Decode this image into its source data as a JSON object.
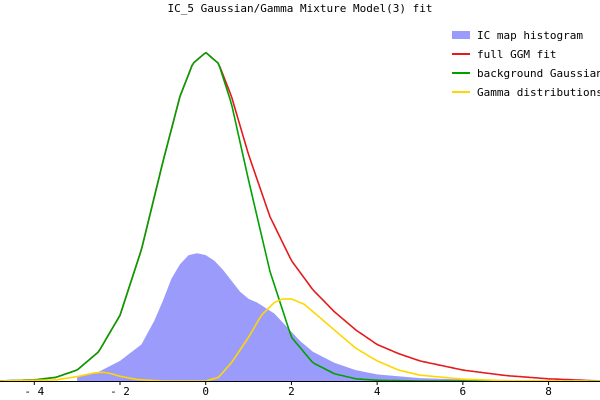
{
  "chart_data": {
    "type": "area",
    "title": "IC_5 Gaussian/Gamma Mixture Model(3) fit",
    "xlabel": "",
    "ylabel": "",
    "xlim": [
      -4.8,
      9.2
    ],
    "ylim": [
      0,
      1.0
    ],
    "grid": false,
    "legend_position": "top-right",
    "x_ticks": [
      {
        "value": -4,
        "label": "- 4"
      },
      {
        "value": -2,
        "label": "- 2"
      },
      {
        "value": 0,
        "label": "0"
      },
      {
        "value": 2,
        "label": "2"
      },
      {
        "value": 4,
        "label": "4"
      },
      {
        "value": 6,
        "label": "6"
      },
      {
        "value": 8,
        "label": "8"
      }
    ],
    "legend": [
      {
        "label": "IC map histogram",
        "color": "#9b9bfb",
        "kind": "histogram"
      },
      {
        "label": "full GGM fit",
        "color": "#e41a1c",
        "kind": "line"
      },
      {
        "label": "background Gaussian",
        "color": "#00a000",
        "kind": "line"
      },
      {
        "label": "Gamma distributions",
        "color": "#ffd700",
        "kind": "line"
      }
    ],
    "series": [
      {
        "name": "IC map histogram",
        "color": "#9b9bfb",
        "x": [
          -3.0,
          -2.5,
          -2.0,
          -1.5,
          -1.2,
          -1.0,
          -0.8,
          -0.6,
          -0.4,
          -0.2,
          0.0,
          0.2,
          0.4,
          0.6,
          0.8,
          1.0,
          1.2,
          1.4,
          1.6,
          1.8,
          2.0,
          2.2,
          2.5,
          3.0,
          3.5,
          4.0,
          5.0,
          6.0,
          7.0,
          8.0,
          9.0
        ],
        "y": [
          0.01,
          0.025,
          0.055,
          0.1,
          0.165,
          0.22,
          0.28,
          0.32,
          0.345,
          0.35,
          0.345,
          0.33,
          0.305,
          0.275,
          0.245,
          0.225,
          0.215,
          0.2,
          0.185,
          0.16,
          0.135,
          0.11,
          0.08,
          0.05,
          0.03,
          0.018,
          0.008,
          0.004,
          0.002,
          0.001,
          0.0
        ]
      },
      {
        "name": "full GGM fit",
        "color": "#e41a1c",
        "x": [
          -4.8,
          -4.0,
          -3.5,
          -3.0,
          -2.5,
          -2.0,
          -1.5,
          -1.0,
          -0.6,
          -0.3,
          0.0,
          0.3,
          0.6,
          1.0,
          1.5,
          2.0,
          2.5,
          3.0,
          3.5,
          4.0,
          4.5,
          5.0,
          6.0,
          7.0,
          8.0,
          9.2
        ],
        "y": [
          0.0,
          0.003,
          0.01,
          0.03,
          0.08,
          0.18,
          0.36,
          0.6,
          0.78,
          0.87,
          0.9,
          0.87,
          0.78,
          0.62,
          0.45,
          0.33,
          0.25,
          0.19,
          0.14,
          0.1,
          0.075,
          0.055,
          0.03,
          0.015,
          0.006,
          0.0
        ]
      },
      {
        "name": "background Gaussian",
        "color": "#00a000",
        "x": [
          -4.8,
          -4.0,
          -3.5,
          -3.0,
          -2.5,
          -2.0,
          -1.5,
          -1.0,
          -0.6,
          -0.3,
          0.0,
          0.3,
          0.6,
          1.0,
          1.5,
          2.0,
          2.5,
          3.0,
          3.5,
          4.0,
          5.0,
          6.0,
          9.2
        ],
        "y": [
          0.0,
          0.003,
          0.01,
          0.03,
          0.08,
          0.18,
          0.36,
          0.6,
          0.78,
          0.87,
          0.9,
          0.87,
          0.76,
          0.55,
          0.3,
          0.12,
          0.05,
          0.02,
          0.006,
          0.002,
          0.0,
          0.0,
          0.0
        ]
      },
      {
        "name": "Gamma distributions",
        "color": "#ffd700",
        "x": [
          -4.8,
          -3.5,
          -3.0,
          -2.6,
          -2.4,
          -2.2,
          -2.0,
          -1.6,
          -1.0,
          -0.5,
          0.0,
          0.3,
          0.6,
          1.0,
          1.3,
          1.6,
          1.8,
          2.0,
          2.3,
          2.6,
          3.0,
          3.5,
          4.0,
          4.5,
          5.0,
          6.0,
          7.0,
          9.2
        ],
        "y": [
          0.0,
          0.003,
          0.012,
          0.022,
          0.024,
          0.02,
          0.013,
          0.004,
          0.0,
          0.0,
          0.0,
          0.01,
          0.05,
          0.12,
          0.18,
          0.215,
          0.225,
          0.225,
          0.21,
          0.18,
          0.14,
          0.09,
          0.055,
          0.03,
          0.016,
          0.005,
          0.001,
          0.0
        ]
      }
    ]
  }
}
